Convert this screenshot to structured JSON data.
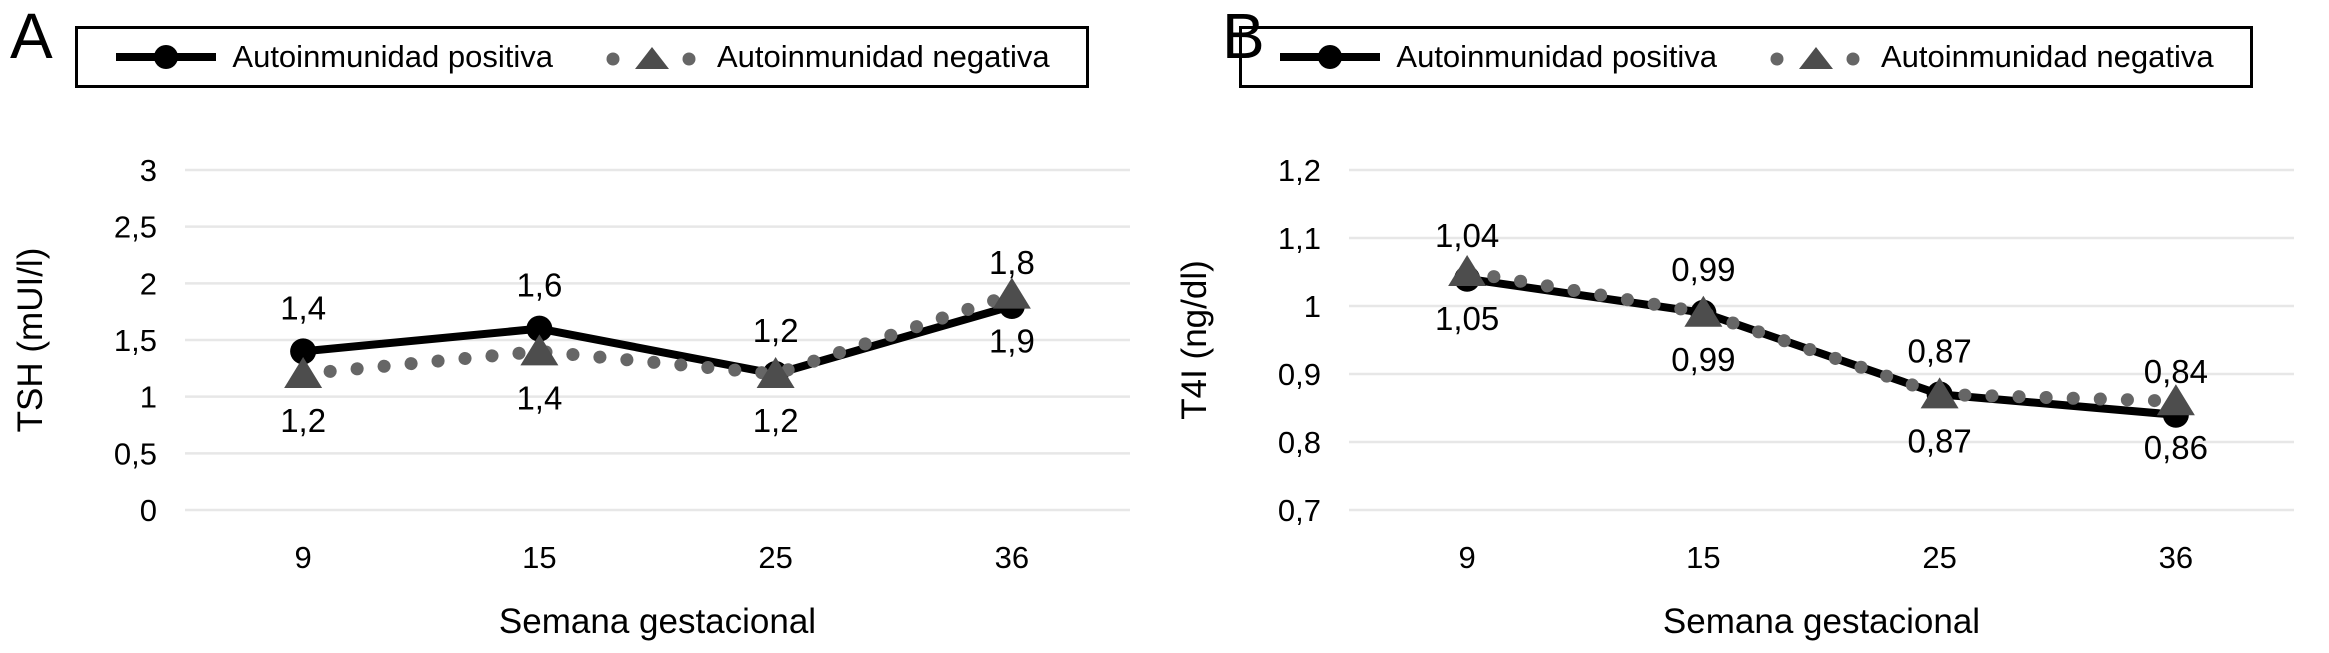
{
  "figure": {
    "background": "#ffffff",
    "xlabel_shared": "Semana gestacional"
  },
  "colors": {
    "series_positive_line": "#000000",
    "series_negative_dots": "#666666",
    "series_negative_marker": "#4d4d4d",
    "gridline": "#e7e7e7",
    "text": "#000000",
    "legend_border": "#000000"
  },
  "chart_data": [
    {
      "panel_letter": "A",
      "type": "line",
      "title": "",
      "xlabel": "Semana gestacional",
      "ylabel": "TSH (mUI/l)",
      "categories": [
        "9",
        "15",
        "25",
        "36"
      ],
      "ylim": [
        0,
        3
      ],
      "yticks": [
        3,
        2.5,
        2,
        1.5,
        1,
        0.5,
        0
      ],
      "ytick_labels": [
        "3",
        "2,5",
        "2",
        "1,5",
        "1",
        "0,5",
        "0"
      ],
      "grid": true,
      "legend_position": "top",
      "series": [
        {
          "name": "Autoinmunidad positiva",
          "marker": "circle",
          "line_style": "solid",
          "values": [
            1.4,
            1.6,
            1.2,
            1.8
          ],
          "data_labels": [
            "1,4",
            "1,6",
            "1,2",
            "1,8"
          ],
          "label_position": "above"
        },
        {
          "name": "Autoinmunidad negativa",
          "marker": "triangle",
          "line_style": "dotted",
          "values": [
            1.2,
            1.4,
            1.2,
            1.9
          ],
          "data_labels": [
            "1,2",
            "1,4",
            "1,2",
            "1,9"
          ],
          "label_position": "below"
        }
      ]
    },
    {
      "panel_letter": "B",
      "type": "line",
      "title": "",
      "xlabel": "Semana gestacional",
      "ylabel": "T4I (ng/dl)",
      "categories": [
        "9",
        "15",
        "25",
        "36"
      ],
      "ylim": [
        0.7,
        1.2
      ],
      "yticks": [
        1.2,
        1.1,
        1,
        0.9,
        0.8,
        0.7
      ],
      "ytick_labels": [
        "1,2",
        "1,1",
        "1",
        "0,9",
        "0,8",
        "0,7"
      ],
      "grid": true,
      "legend_position": "top",
      "series": [
        {
          "name": "Autoinmunidad positiva",
          "marker": "circle",
          "line_style": "solid",
          "values": [
            1.04,
            0.99,
            0.87,
            0.84
          ],
          "data_labels": [
            "1,04",
            "0,99",
            "0,87",
            "0,84"
          ],
          "label_position": "above"
        },
        {
          "name": "Autoinmunidad negativa",
          "marker": "triangle",
          "line_style": "dotted",
          "values": [
            1.05,
            0.99,
            0.87,
            0.86
          ],
          "data_labels": [
            "1,05",
            "0,99",
            "0,87",
            "0,86"
          ],
          "label_position": "below"
        }
      ]
    }
  ]
}
